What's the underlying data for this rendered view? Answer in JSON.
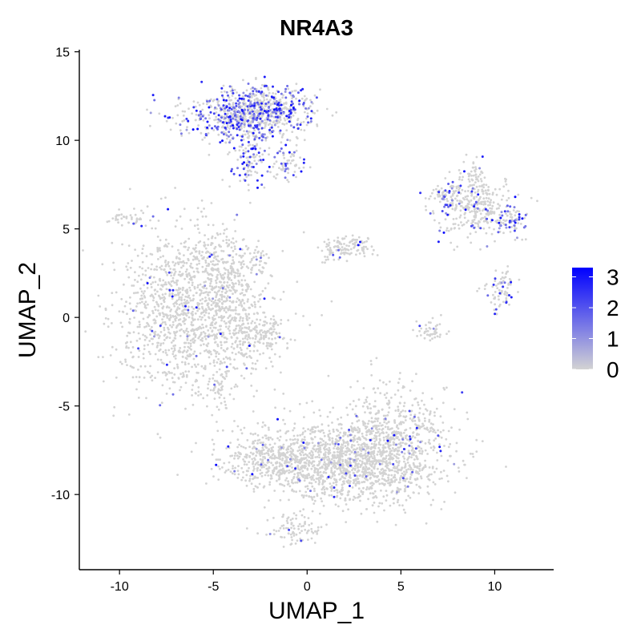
{
  "chart_data": {
    "type": "scatter",
    "title": "NR4A3",
    "xlabel": "UMAP_1",
    "ylabel": "UMAP_2",
    "xlim": [
      -12.1,
      13.1
    ],
    "ylim": [
      -14.2,
      15.3
    ],
    "x_ticks": [
      {
        "value": -10,
        "label": "-10"
      },
      {
        "value": -5,
        "label": "-5"
      },
      {
        "value": 0,
        "label": "0"
      },
      {
        "value": 5,
        "label": "5"
      },
      {
        "value": 10,
        "label": "10"
      }
    ],
    "y_ticks": [
      {
        "value": 15,
        "label": "15"
      },
      {
        "value": 10,
        "label": "10"
      },
      {
        "value": 5,
        "label": "5"
      },
      {
        "value": 0,
        "label": "0"
      },
      {
        "value": -5,
        "label": "-5"
      },
      {
        "value": -10,
        "label": "-10"
      }
    ],
    "grid": false,
    "legend": {
      "position": "right",
      "type": "colorbar",
      "min": 0,
      "max": 3.3,
      "color_low": "#d3d3d3",
      "color_high": "#0000ff",
      "ticks": [
        {
          "value": 0,
          "label": "0"
        },
        {
          "value": 1,
          "label": "1"
        },
        {
          "value": 2,
          "label": "2"
        },
        {
          "value": 3,
          "label": "3"
        }
      ]
    },
    "clusters": [
      {
        "cx": -6.2,
        "cy": 0.4,
        "sx": 2.0,
        "sy": 2.3,
        "n": 1300,
        "hot": 0.03
      },
      {
        "cx": -4.5,
        "cy": 2.4,
        "sx": 1.0,
        "sy": 1.3,
        "n": 250,
        "hot": 0.03
      },
      {
        "cx": -3.2,
        "cy": -1.2,
        "sx": 0.9,
        "sy": 0.9,
        "n": 160,
        "hot": 0.03
      },
      {
        "cx": -2.0,
        "cy": -0.9,
        "sx": 0.5,
        "sy": 0.5,
        "n": 50,
        "hot": 0.03
      },
      {
        "cx": -4.7,
        "cy": -4.2,
        "sx": 0.3,
        "sy": 0.6,
        "n": 35,
        "hot": 0.08
      },
      {
        "cx": -2.5,
        "cy": 3.3,
        "sx": 0.2,
        "sy": 0.5,
        "n": 25,
        "hot": 0.08
      },
      {
        "cx": -3.4,
        "cy": 11.4,
        "sx": 1.6,
        "sy": 0.7,
        "n": 650,
        "hot": 0.35
      },
      {
        "cx": -2.0,
        "cy": 11.9,
        "sx": 1.1,
        "sy": 0.6,
        "n": 250,
        "hot": 0.35
      },
      {
        "cx": -3.0,
        "cy": 9.0,
        "sx": 0.5,
        "sy": 0.9,
        "n": 120,
        "hot": 0.4
      },
      {
        "cx": -1.0,
        "cy": 8.8,
        "sx": 0.4,
        "sy": 0.6,
        "n": 70,
        "hot": 0.25
      },
      {
        "cx": 2.1,
        "cy": 4.0,
        "sx": 0.6,
        "sy": 0.35,
        "n": 110,
        "hot": 0.03
      },
      {
        "cx": 1.2,
        "cy": 3.6,
        "sx": 0.2,
        "sy": 0.3,
        "n": 15,
        "hot": 0.05
      },
      {
        "cx": 9.0,
        "cy": 6.3,
        "sx": 1.0,
        "sy": 0.8,
        "n": 320,
        "hot": 0.08
      },
      {
        "cx": 7.5,
        "cy": 6.9,
        "sx": 0.5,
        "sy": 0.4,
        "n": 60,
        "hot": 0.35
      },
      {
        "cx": 10.8,
        "cy": 5.5,
        "sx": 0.45,
        "sy": 0.4,
        "n": 70,
        "hot": 0.4
      },
      {
        "cx": 8.9,
        "cy": 8.2,
        "sx": 0.3,
        "sy": 0.4,
        "n": 40,
        "hot": 0.05
      },
      {
        "cx": 10.3,
        "cy": 1.5,
        "sx": 0.4,
        "sy": 0.6,
        "n": 80,
        "hot": 0.15
      },
      {
        "cx": 6.6,
        "cy": -0.7,
        "sx": 0.4,
        "sy": 0.3,
        "n": 45,
        "hot": 0.1
      },
      {
        "cx": 2.3,
        "cy": -8.2,
        "sx": 2.4,
        "sy": 1.2,
        "n": 1400,
        "hot": 0.03
      },
      {
        "cx": 4.6,
        "cy": -6.5,
        "sx": 1.4,
        "sy": 1.3,
        "n": 450,
        "hot": 0.03
      },
      {
        "cx": -1.8,
        "cy": -8.0,
        "sx": 1.4,
        "sy": 0.7,
        "n": 350,
        "hot": 0.04
      },
      {
        "cx": -0.5,
        "cy": -12.0,
        "sx": 0.9,
        "sy": 0.45,
        "n": 90,
        "hot": 0.05
      },
      {
        "cx": -9.5,
        "cy": 5.6,
        "sx": 0.55,
        "sy": 0.22,
        "n": 35,
        "hot": 0.02
      }
    ]
  }
}
